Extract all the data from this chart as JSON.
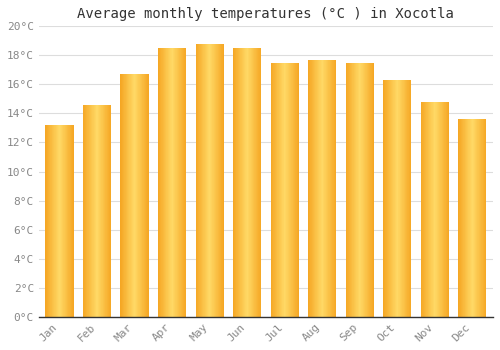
{
  "title": "Average monthly temperatures (°C ) in Xocotla",
  "months": [
    "Jan",
    "Feb",
    "Mar",
    "Apr",
    "May",
    "Jun",
    "Jul",
    "Aug",
    "Sep",
    "Oct",
    "Nov",
    "Dec"
  ],
  "values": [
    13.2,
    14.6,
    16.7,
    18.5,
    18.8,
    18.5,
    17.5,
    17.7,
    17.5,
    16.3,
    14.8,
    13.6
  ],
  "bar_color_center": "#FFD966",
  "bar_color_edge": "#F5A623",
  "background_color": "#FFFFFF",
  "plot_bg_color": "#FFFFFF",
  "grid_color": "#DDDDDD",
  "ylim": [
    0,
    20
  ],
  "yticks": [
    0,
    2,
    4,
    6,
    8,
    10,
    12,
    14,
    16,
    18,
    20
  ],
  "title_fontsize": 10,
  "tick_fontsize": 8,
  "tick_color": "#888888",
  "title_color": "#333333",
  "font_family": "monospace",
  "bar_width": 0.75
}
